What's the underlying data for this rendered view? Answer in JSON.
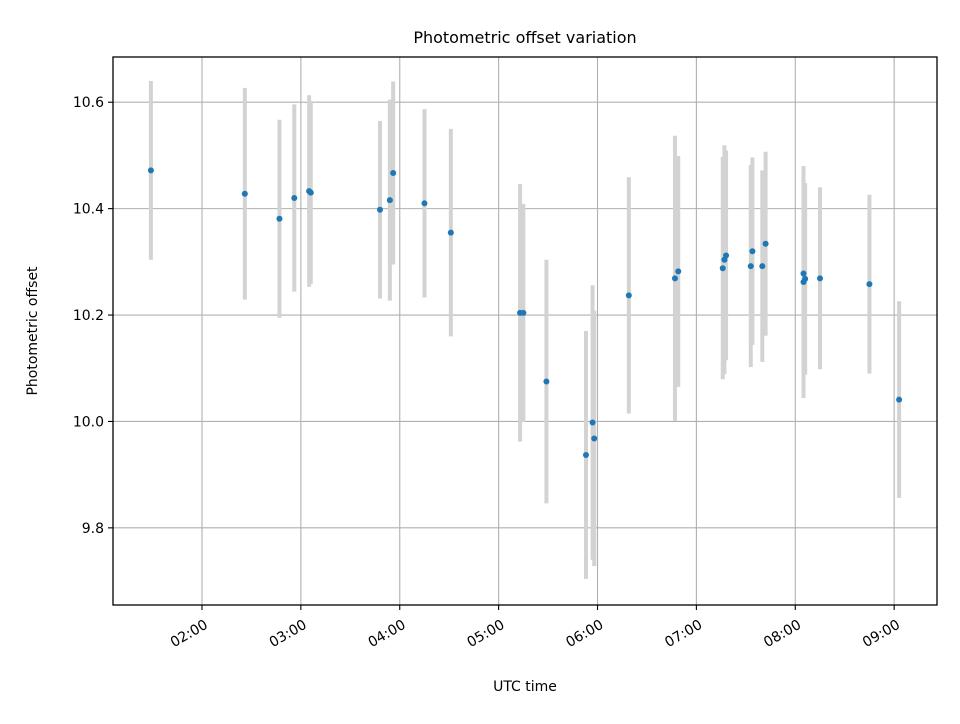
{
  "chart_data": {
    "type": "scatter",
    "title": "Photometric offset variation",
    "xlabel": "UTC time",
    "ylabel": "Photometric offset",
    "x_tick_labels": [
      "02:00",
      "03:00",
      "04:00",
      "05:00",
      "06:00",
      "07:00",
      "08:00",
      "09:00"
    ],
    "y_tick_labels": [
      "9.8",
      "10.0",
      "10.2",
      "10.4",
      "10.6"
    ],
    "y_ticks": [
      9.8,
      10.0,
      10.2,
      10.4,
      10.6
    ],
    "xlim": [
      "01:06",
      "09:26"
    ],
    "ylim": [
      9.655,
      10.685
    ],
    "grid": true,
    "marker_color": "#1f77b4",
    "errorbar_color": "#d3d3d3",
    "points": [
      {
        "x": "01:29",
        "y": 10.472,
        "yerr": 0.168
      },
      {
        "x": "02:26",
        "y": 10.428,
        "yerr": 0.199
      },
      {
        "x": "02:47",
        "y": 10.381,
        "yerr": 0.186
      },
      {
        "x": "02:56",
        "y": 10.42,
        "yerr": 0.176
      },
      {
        "x": "03:05",
        "y": 10.433,
        "yerr": 0.18
      },
      {
        "x": "03:06",
        "y": 10.43,
        "yerr": 0.172
      },
      {
        "x": "03:48",
        "y": 10.398,
        "yerr": 0.167
      },
      {
        "x": "03:54",
        "y": 10.416,
        "yerr": 0.189
      },
      {
        "x": "03:56",
        "y": 10.467,
        "yerr": 0.172
      },
      {
        "x": "04:15",
        "y": 10.41,
        "yerr": 0.177
      },
      {
        "x": "04:31",
        "y": 10.355,
        "yerr": 0.195
      },
      {
        "x": "05:13",
        "y": 10.204,
        "yerr": 0.242
      },
      {
        "x": "05:15",
        "y": 10.204,
        "yerr": 0.205
      },
      {
        "x": "05:29",
        "y": 10.075,
        "yerr": 0.229
      },
      {
        "x": "05:53",
        "y": 9.937,
        "yerr": 0.233
      },
      {
        "x": "05:57",
        "y": 9.998,
        "yerr": 0.258
      },
      {
        "x": "05:58",
        "y": 9.968,
        "yerr": 0.24
      },
      {
        "x": "06:19",
        "y": 10.237,
        "yerr": 0.222
      },
      {
        "x": "06:47",
        "y": 10.269,
        "yerr": 0.268
      },
      {
        "x": "06:49",
        "y": 10.282,
        "yerr": 0.217
      },
      {
        "x": "07:16",
        "y": 10.288,
        "yerr": 0.209
      },
      {
        "x": "07:17",
        "y": 10.304,
        "yerr": 0.215
      },
      {
        "x": "07:18",
        "y": 10.312,
        "yerr": 0.197
      },
      {
        "x": "07:33",
        "y": 10.292,
        "yerr": 0.19
      },
      {
        "x": "07:34",
        "y": 10.32,
        "yerr": 0.176
      },
      {
        "x": "07:40",
        "y": 10.292,
        "yerr": 0.18
      },
      {
        "x": "07:42",
        "y": 10.334,
        "yerr": 0.173
      },
      {
        "x": "08:05",
        "y": 10.278,
        "yerr": 0.2
      },
      {
        "x": "08:05",
        "y": 10.262,
        "yerr": 0.218
      },
      {
        "x": "08:06",
        "y": 10.268,
        "yerr": 0.18
      },
      {
        "x": "08:15",
        "y": 10.269,
        "yerr": 0.171
      },
      {
        "x": "08:45",
        "y": 10.258,
        "yerr": 0.168
      },
      {
        "x": "09:03",
        "y": 10.041,
        "yerr": 0.185
      }
    ]
  }
}
